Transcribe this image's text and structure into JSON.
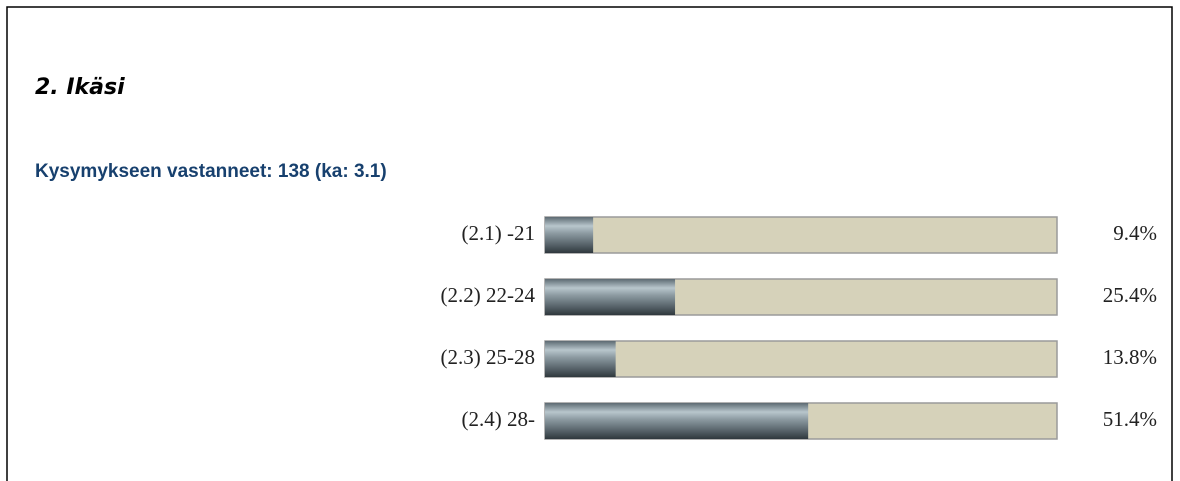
{
  "chart_data": {
    "type": "bar",
    "orientation": "horizontal",
    "title": "2. Ikäsi",
    "subtitle": "Kysymykseen vastanneet: 138 (ka: 3.1)",
    "categories": [
      "(2.1) -21",
      "(2.2) 22-24",
      "(2.3) 25-28",
      "(2.4) 28-"
    ],
    "values": [
      9.4,
      25.4,
      13.8,
      51.4
    ],
    "value_labels": [
      "9.4%",
      "25.4%",
      "13.8%",
      "51.4%"
    ],
    "xlim": [
      0,
      100
    ]
  }
}
